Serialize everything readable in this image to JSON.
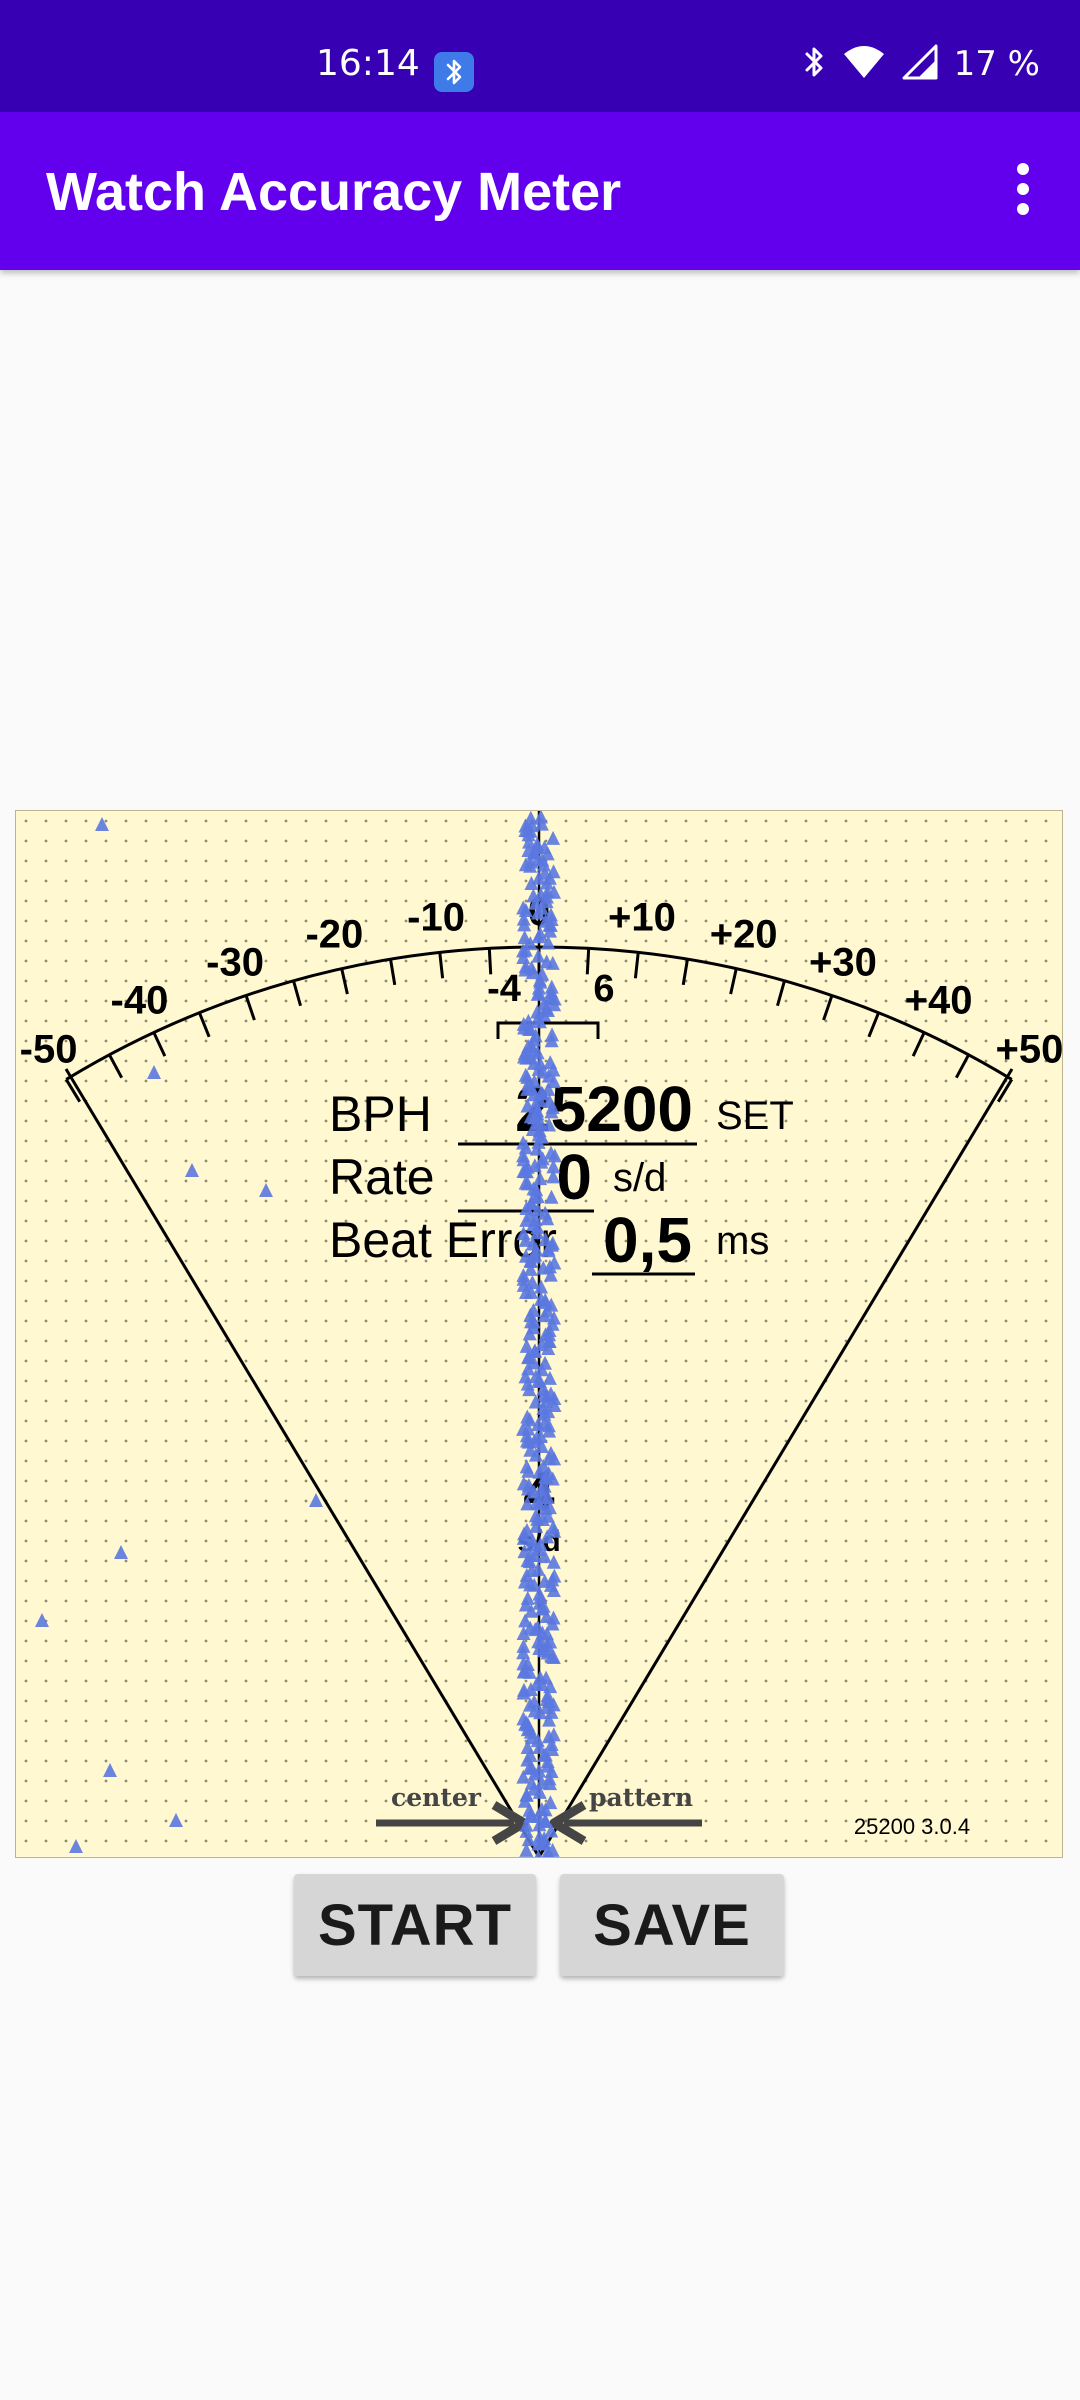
{
  "status_bar": {
    "time": "16:14",
    "battery": "17 %",
    "icons": [
      "bluetooth-badge-icon",
      "bluetooth-icon",
      "wifi-icon",
      "signal-icon"
    ]
  },
  "app_bar": {
    "title": "Watch Accuracy Meter",
    "menu_icon": "more-vert-icon"
  },
  "meter": {
    "scale_labels": [
      "-50",
      "-40",
      "-30",
      "-20",
      "-10",
      "0",
      "+10",
      "+20",
      "+30",
      "+40",
      "+50"
    ],
    "inner_labels": [
      "-4",
      "6"
    ],
    "bph_label": "BPH",
    "bph_value": "25200",
    "bph_set": "SET",
    "rate_label": "Rate",
    "rate_value": "0",
    "rate_unit": "s/d",
    "beat_error_label": "Beat Error",
    "beat_error_value": "0,5",
    "beat_error_unit": "ms",
    "center_value": "4",
    "center_unit": "s/d",
    "center_caption": "center",
    "pattern_caption": "pattern",
    "version": "25200 3.0.4",
    "colors": {
      "background": "#fff8d0",
      "points": "#5b78e0",
      "ink": "#000000"
    }
  },
  "buttons": {
    "start": "START",
    "save": "SAVE"
  }
}
